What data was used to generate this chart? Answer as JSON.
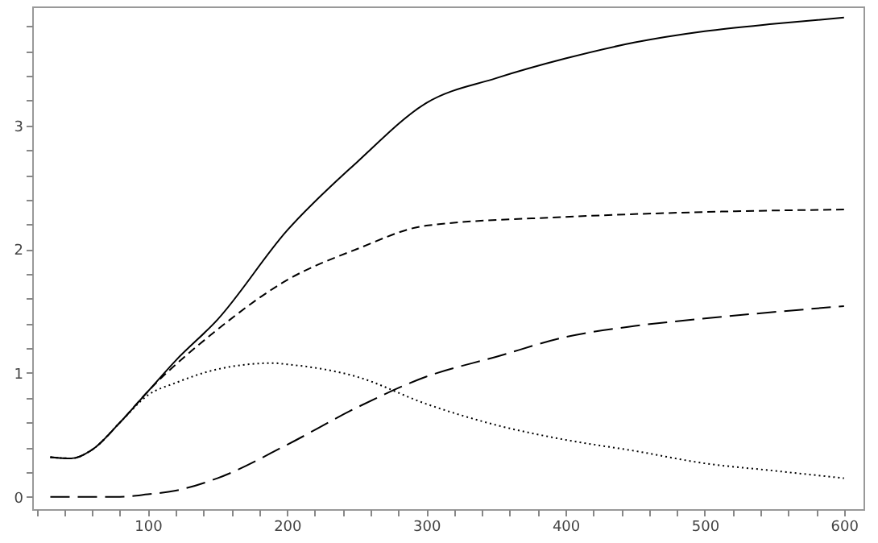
{
  "chart_data": {
    "type": "line",
    "xlim": [
      17,
      614
    ],
    "ylim": [
      -0.1,
      3.96
    ],
    "xticks": [
      {
        "value": 20,
        "label": null
      },
      {
        "value": 40,
        "label": null
      },
      {
        "value": 60,
        "label": null
      },
      {
        "value": 80,
        "label": null
      },
      100,
      {
        "value": 120,
        "label": null
      },
      {
        "value": 140,
        "label": null
      },
      {
        "value": 160,
        "label": null
      },
      {
        "value": 180,
        "label": null
      },
      200,
      {
        "value": 220,
        "label": null
      },
      {
        "value": 240,
        "label": null
      },
      {
        "value": 260,
        "label": null
      },
      {
        "value": 280,
        "label": null
      },
      300,
      {
        "value": 320,
        "label": null
      },
      {
        "value": 340,
        "label": null
      },
      {
        "value": 360,
        "label": null
      },
      {
        "value": 380,
        "label": null
      },
      400,
      {
        "value": 420,
        "label": null
      },
      {
        "value": 440,
        "label": null
      },
      {
        "value": 460,
        "label": null
      },
      {
        "value": 480,
        "label": null
      },
      500,
      {
        "value": 520,
        "label": null
      },
      {
        "value": 540,
        "label": null
      },
      {
        "value": 560,
        "label": null
      },
      {
        "value": 580,
        "label": null
      },
      600
    ],
    "yticks": [
      0,
      {
        "value": 0.2,
        "label": null
      },
      {
        "value": 0.4,
        "label": null
      },
      {
        "value": 0.6,
        "label": null
      },
      {
        "value": 0.8,
        "label": null
      },
      1,
      {
        "value": 1.2,
        "label": null
      },
      {
        "value": 1.4,
        "label": null
      },
      {
        "value": 1.6,
        "label": null
      },
      {
        "value": 1.8,
        "label": null
      },
      2,
      {
        "value": 2.2,
        "label": null
      },
      {
        "value": 2.4,
        "label": null
      },
      {
        "value": 2.6,
        "label": null
      },
      {
        "value": 2.8,
        "label": null
      },
      3,
      {
        "value": 3.2,
        "label": null
      },
      {
        "value": 3.4,
        "label": null
      },
      {
        "value": 3.6,
        "label": null
      },
      {
        "value": 3.8,
        "label": null
      }
    ],
    "grid": false,
    "marker": "none",
    "series": [
      {
        "color": "#000000",
        "line_style": "solid",
        "x": [
          30,
          45,
          60,
          80,
          100,
          120,
          150,
          200,
          250,
          300,
          350,
          400,
          450,
          500,
          550,
          600
        ],
        "values": [
          0.32,
          0.31,
          0.38,
          0.6,
          0.85,
          1.1,
          1.43,
          2.15,
          2.7,
          3.18,
          3.38,
          3.54,
          3.67,
          3.76,
          3.82,
          3.87
        ]
      },
      {
        "color": "#000000",
        "line_style": "dashed",
        "x": [
          30,
          45,
          60,
          80,
          100,
          150,
          200,
          250,
          300,
          400,
          500,
          600
        ],
        "values": [
          0.32,
          0.31,
          0.38,
          0.6,
          0.85,
          1.35,
          1.75,
          2.0,
          2.19,
          2.26,
          2.3,
          2.32
        ]
      },
      {
        "color": "#000000",
        "line_style": "dotted",
        "x": [
          30,
          45,
          60,
          80,
          100,
          120,
          150,
          190,
          200,
          250,
          300,
          350,
          400,
          450,
          500,
          550,
          600
        ],
        "values": [
          0.32,
          0.31,
          0.38,
          0.6,
          0.82,
          0.92,
          1.03,
          1.08,
          1.07,
          0.97,
          0.75,
          0.58,
          0.46,
          0.37,
          0.27,
          0.21,
          0.15
        ]
      },
      {
        "color": "#000000",
        "line_style": "dashdot",
        "x": [
          30,
          80,
          100,
          120,
          150,
          200,
          250,
          300,
          350,
          400,
          450,
          500,
          600
        ],
        "values": [
          0,
          0,
          0.02,
          0.05,
          0.15,
          0.42,
          0.72,
          0.97,
          1.13,
          1.29,
          1.38,
          1.44,
          1.54
        ]
      }
    ]
  }
}
